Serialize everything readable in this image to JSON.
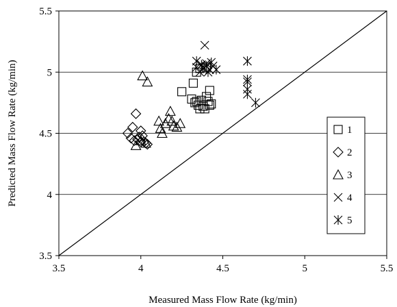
{
  "chart_data": {
    "type": "scatter",
    "title": "",
    "xlabel": "Measured Mass Flow Rate (kg/min)",
    "ylabel": "Predicted Mass Flow Rate (kg/min)",
    "xlim": [
      3.5,
      5.5
    ],
    "ylim": [
      3.5,
      5.5
    ],
    "xticks": [
      "3.5",
      "4",
      "4.5",
      "5",
      "5.5"
    ],
    "yticks": [
      "3.5",
      "4",
      "4.5",
      "5",
      "5.5"
    ],
    "grid": "horizontal",
    "legend": "right",
    "reference_line": [
      [
        3.5,
        3.5
      ],
      [
        5.5,
        5.5
      ]
    ],
    "series": [
      {
        "name": "1",
        "marker": "square",
        "points": [
          [
            4.25,
            4.84
          ],
          [
            4.32,
            4.91
          ],
          [
            4.34,
            5.0
          ],
          [
            4.36,
            5.03
          ],
          [
            4.4,
            5.04
          ],
          [
            4.42,
            4.85
          ],
          [
            4.31,
            4.78
          ],
          [
            4.33,
            4.75
          ],
          [
            4.35,
            4.73
          ],
          [
            4.37,
            4.77
          ],
          [
            4.38,
            4.72
          ],
          [
            4.39,
            4.7
          ],
          [
            4.4,
            4.8
          ],
          [
            4.41,
            4.76
          ],
          [
            4.42,
            4.73
          ],
          [
            4.36,
            4.7
          ],
          [
            4.34,
            4.76
          ],
          [
            4.43,
            4.74
          ]
        ]
      },
      {
        "name": "2",
        "marker": "diamond",
        "points": [
          [
            3.92,
            4.5
          ],
          [
            3.95,
            4.55
          ],
          [
            3.97,
            4.66
          ],
          [
            3.94,
            4.46
          ],
          [
            3.96,
            4.44
          ],
          [
            3.98,
            4.45
          ],
          [
            4.0,
            4.52
          ],
          [
            4.01,
            4.48
          ],
          [
            4.02,
            4.43
          ],
          [
            4.03,
            4.42
          ],
          [
            4.04,
            4.41
          ],
          [
            4.0,
            4.43
          ],
          [
            3.99,
            4.47
          ]
        ]
      },
      {
        "name": "3",
        "marker": "triangle",
        "points": [
          [
            4.01,
            4.97
          ],
          [
            4.04,
            4.92
          ],
          [
            3.97,
            4.4
          ],
          [
            4.0,
            4.44
          ],
          [
            4.03,
            4.42
          ],
          [
            4.11,
            4.6
          ],
          [
            4.12,
            4.54
          ],
          [
            4.13,
            4.5
          ],
          [
            4.15,
            4.58
          ],
          [
            4.17,
            4.62
          ],
          [
            4.18,
            4.68
          ],
          [
            4.19,
            4.6
          ],
          [
            4.2,
            4.56
          ],
          [
            4.22,
            4.55
          ],
          [
            4.24,
            4.58
          ]
        ]
      },
      {
        "name": "4",
        "marker": "x",
        "points": [
          [
            4.39,
            5.22
          ],
          [
            4.34,
            5.04
          ],
          [
            4.37,
            5.06
          ],
          [
            4.4,
            5.07
          ],
          [
            4.42,
            5.02
          ],
          [
            4.44,
            5.05
          ],
          [
            4.36,
            5.0
          ],
          [
            4.38,
            5.03
          ]
        ]
      },
      {
        "name": "5",
        "marker": "star",
        "points": [
          [
            4.34,
            5.09
          ],
          [
            4.37,
            5.06
          ],
          [
            4.4,
            5.05
          ],
          [
            4.43,
            5.08
          ],
          [
            4.46,
            5.02
          ],
          [
            4.41,
            5.0
          ],
          [
            4.65,
            5.09
          ],
          [
            4.65,
            4.94
          ],
          [
            4.65,
            4.92
          ],
          [
            4.65,
            4.86
          ],
          [
            4.65,
            4.82
          ],
          [
            4.7,
            4.75
          ]
        ]
      }
    ]
  }
}
